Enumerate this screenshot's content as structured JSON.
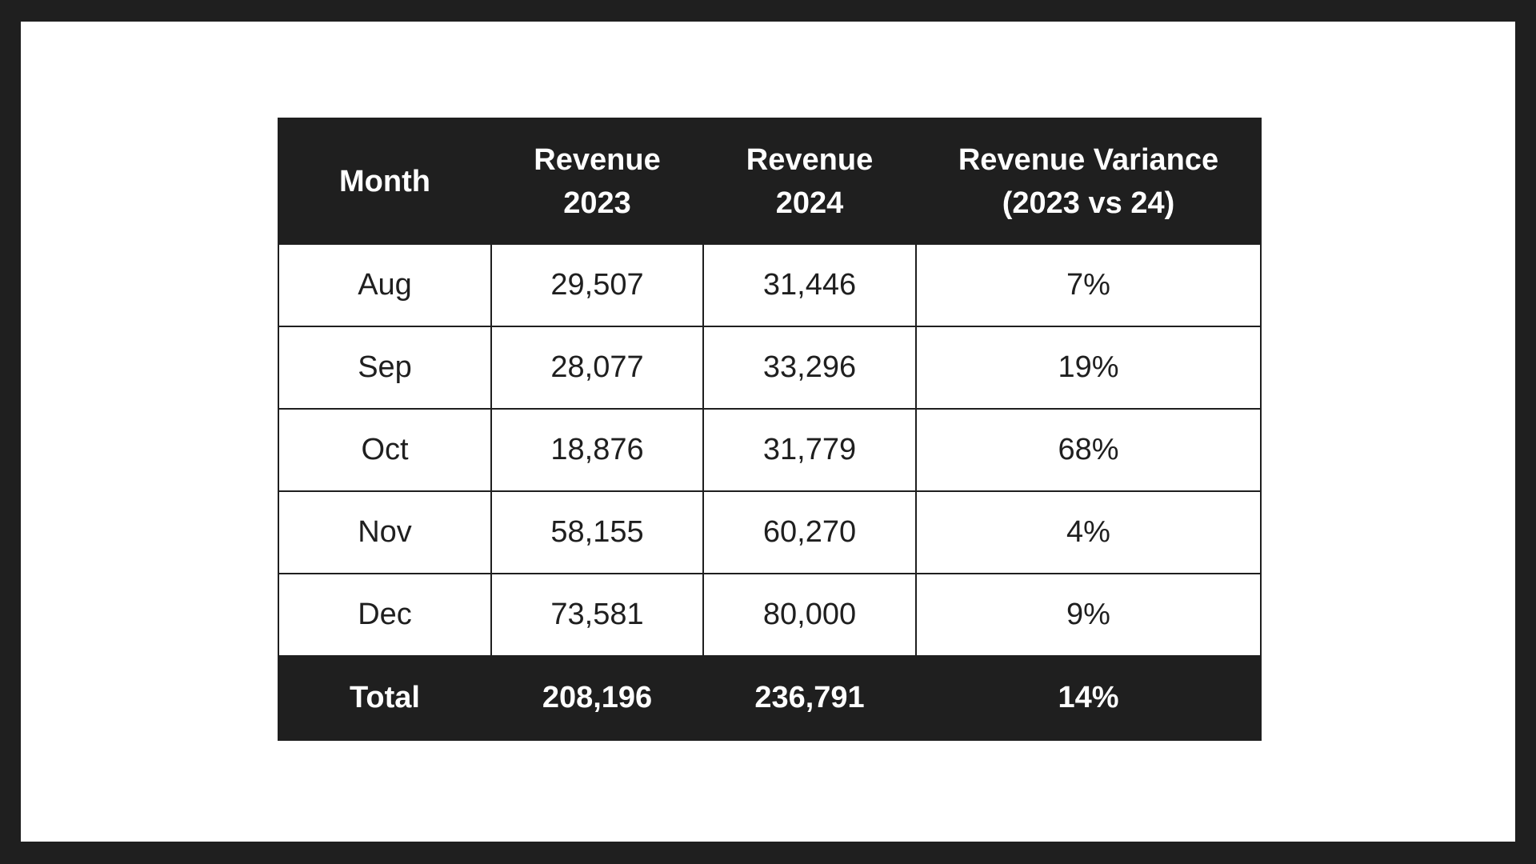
{
  "table": {
    "headers": [
      {
        "line1": "Month",
        "line2": ""
      },
      {
        "line1": "Revenue",
        "line2": "2023"
      },
      {
        "line1": "Revenue",
        "line2": "2024"
      },
      {
        "line1": "Revenue Variance",
        "line2": "(2023 vs 24)"
      }
    ],
    "rows": [
      {
        "month": "Aug",
        "rev2023": "29,507",
        "rev2024": "31,446",
        "variance": "7%"
      },
      {
        "month": "Sep",
        "rev2023": "28,077",
        "rev2024": "33,296",
        "variance": "19%"
      },
      {
        "month": "Oct",
        "rev2023": "18,876",
        "rev2024": "31,779",
        "variance": "68%"
      },
      {
        "month": "Nov",
        "rev2023": "58,155",
        "rev2024": "60,270",
        "variance": "4%"
      },
      {
        "month": "Dec",
        "rev2023": "73,581",
        "rev2024": "80,000",
        "variance": "9%"
      }
    ],
    "total": {
      "label": "Total",
      "rev2023": "208,196",
      "rev2024": "236,791",
      "variance": "14%"
    }
  },
  "colors": {
    "dark": "#1f1f1f",
    "light": "#ffffff"
  }
}
